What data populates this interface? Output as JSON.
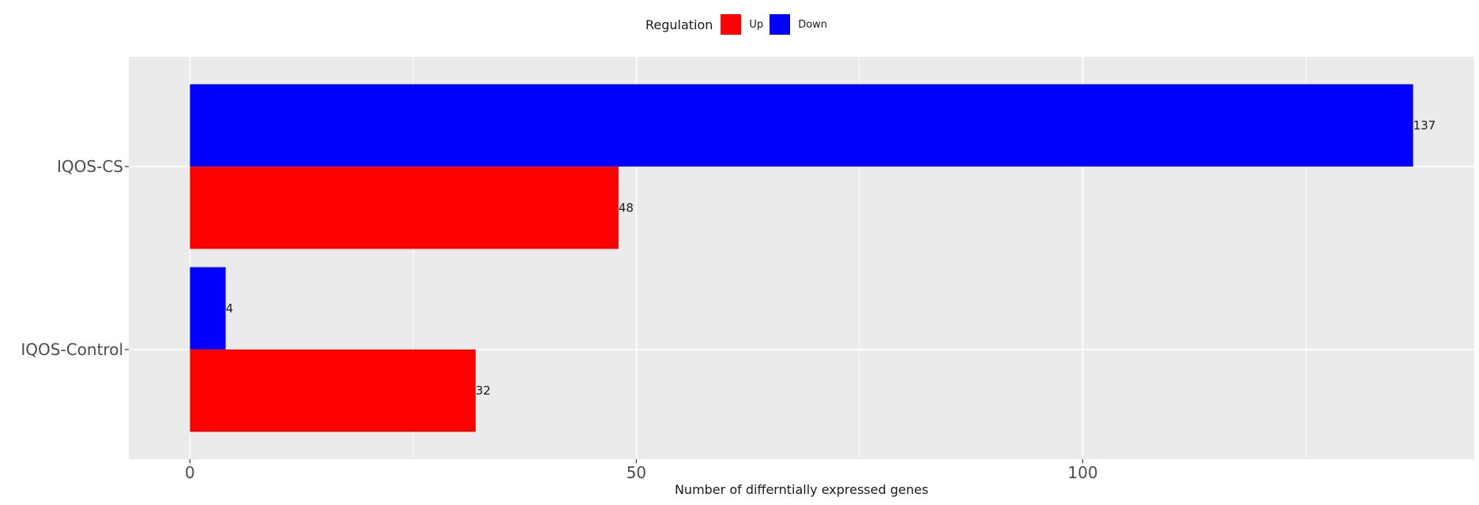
{
  "chart_data": {
    "type": "bar",
    "orientation": "horizontal",
    "categories": [
      "IQOS-CS",
      "IQOS-Control"
    ],
    "series": [
      {
        "name": "Down",
        "color": "#0000FF",
        "values": [
          137,
          4
        ]
      },
      {
        "name": "Up",
        "color": "#FF0000",
        "values": [
          48,
          32
        ]
      }
    ],
    "xlabel": "Number of differntially expressed genes",
    "ylabel": "",
    "xlim": [
      -6.85,
      143.85
    ],
    "x_ticks": [
      0,
      50,
      100
    ],
    "x_minor_ticks": [
      25,
      75,
      125
    ],
    "legend": {
      "title": "Regulation",
      "position": "top",
      "items": [
        {
          "label": "Up",
          "color": "#FF0000"
        },
        {
          "label": "Down",
          "color": "#0000FF"
        }
      ]
    },
    "grid": true,
    "panel_background": "#EBEBEB",
    "data_labels": true
  }
}
